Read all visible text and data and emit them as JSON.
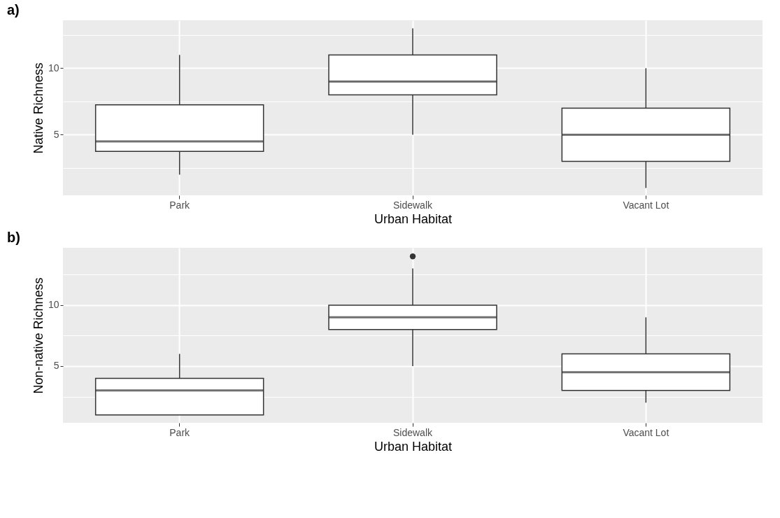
{
  "chart_data": [
    {
      "type": "box",
      "title": "a)",
      "xlabel": "Urban Habitat",
      "ylabel": "Native Richness",
      "categories": [
        "Park",
        "Sidewalk",
        "Vacant Lot"
      ],
      "boxes": [
        {
          "low": 2,
          "q1": 3.75,
          "median": 4.5,
          "q3": 7.25,
          "high": 11
        },
        {
          "low": 5,
          "q1": 8,
          "median": 9,
          "q3": 11,
          "high": 13
        },
        {
          "low": 1,
          "q1": 3,
          "median": 5,
          "q3": 7,
          "high": 10
        }
      ],
      "ylim": [
        0.45,
        13.6
      ],
      "yticks": [
        {
          "value": 2.5,
          "label": null
        },
        5,
        {
          "value": 7.5,
          "label": null
        },
        10,
        {
          "value": 12.5,
          "label": null
        }
      ],
      "grid": true
    },
    {
      "type": "box",
      "title": "b)",
      "xlabel": "Urban Habitat",
      "ylabel": "Non-native Richness",
      "categories": [
        "Park",
        "Sidewalk",
        "Vacant Lot"
      ],
      "boxes": [
        {
          "low": 1,
          "q1": 1,
          "median": 3,
          "q3": 4,
          "high": 6
        },
        {
          "low": 5,
          "q1": 8,
          "median": 9,
          "q3": 10,
          "high": 13,
          "outliers": [
            14
          ]
        },
        {
          "low": 2,
          "q1": 3,
          "median": 4.5,
          "q3": 6,
          "high": 9
        }
      ],
      "ylim": [
        0.35,
        14.7
      ],
      "yticks": [
        {
          "value": 2.5,
          "label": null
        },
        5,
        {
          "value": 7.5,
          "label": null
        },
        10,
        {
          "value": 12.5,
          "label": null
        }
      ],
      "grid": true
    }
  ]
}
